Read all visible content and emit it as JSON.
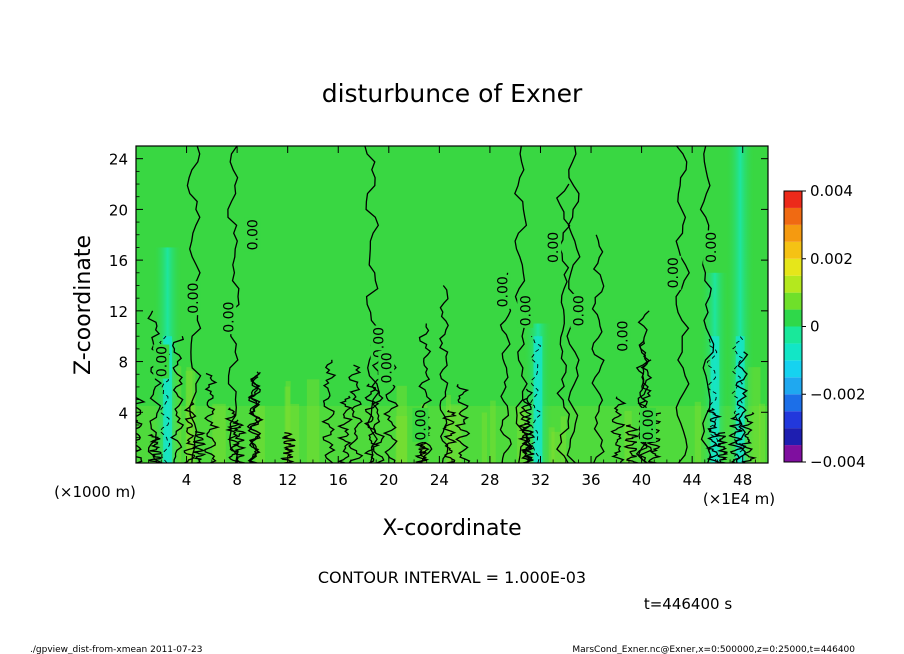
{
  "chart_data": {
    "type": "heatmap",
    "title": "disturbunce of Exner",
    "xlabel": "X-coordinate",
    "ylabel": "Z-coordinate",
    "x_unit_left": "(×1000 m)",
    "x_unit_right": "(×1E4 m)",
    "xlim": [
      0,
      50
    ],
    "ylim": [
      0,
      25
    ],
    "x_ticks": [
      "4",
      "8",
      "12",
      "16",
      "20",
      "24",
      "28",
      "32",
      "36",
      "40",
      "44",
      "48"
    ],
    "y_ticks": [
      "4",
      "8",
      "12",
      "16",
      "20",
      "24"
    ],
    "colorbar": {
      "ticks": [
        "0.004",
        "0.002",
        "0",
        "−0.002",
        "−0.004"
      ],
      "range": [
        -0.004,
        0.004
      ],
      "levels": [
        {
          "value": -0.004,
          "color": "#7f0f9f"
        },
        {
          "value": -0.0035,
          "color": "#1e1eb0"
        },
        {
          "value": -0.003,
          "color": "#2238dc"
        },
        {
          "value": -0.0025,
          "color": "#1c6fe8"
        },
        {
          "value": -0.002,
          "color": "#1fa8f0"
        },
        {
          "value": -0.0015,
          "color": "#16d2f0"
        },
        {
          "value": -0.001,
          "color": "#12e6c6"
        },
        {
          "value": -0.0005,
          "color": "#19e89a"
        },
        {
          "value": 0.0,
          "color": "#2fd84a"
        },
        {
          "value": 0.0005,
          "color": "#6fe02a"
        },
        {
          "value": 0.001,
          "color": "#b4e81e"
        },
        {
          "value": 0.0015,
          "color": "#e6e61a"
        },
        {
          "value": 0.002,
          "color": "#f5c214"
        },
        {
          "value": 0.0025,
          "color": "#f59a10"
        },
        {
          "value": 0.003,
          "color": "#f06a12"
        },
        {
          "value": 0.0035,
          "color": "#ec2a1a"
        },
        {
          "value": 0.004,
          "color": "#f08a8a"
        }
      ],
      "top_color": "#f5b8b8"
    },
    "contour_interval_text": "CONTOUR INTERVAL = 1.000E-03",
    "time_text": "t=446400 s",
    "contour_label": "0.00",
    "contour_labels": [
      {
        "x": 2.0,
        "z": 8.0
      },
      {
        "x": 4.5,
        "z": 13.0
      },
      {
        "x": 7.3,
        "z": 11.5
      },
      {
        "x": 9.2,
        "z": 18.0
      },
      {
        "x": 19.2,
        "z": 9.5
      },
      {
        "x": 19.8,
        "z": 7.5
      },
      {
        "x": 22.5,
        "z": 3.0
      },
      {
        "x": 29.0,
        "z": 13.5
      },
      {
        "x": 30.8,
        "z": 12.0
      },
      {
        "x": 33.0,
        "z": 17.0
      },
      {
        "x": 35.0,
        "z": 12.0
      },
      {
        "x": 38.5,
        "z": 10.0
      },
      {
        "x": 40.5,
        "z": 3.0
      },
      {
        "x": 42.5,
        "z": 15.0
      },
      {
        "x": 45.5,
        "z": 17.0
      }
    ],
    "negative_centers": [
      {
        "x": 2.5,
        "zmax": 17
      },
      {
        "x": 31.8,
        "zmax": 11
      },
      {
        "x": 45.8,
        "zmax": 15
      },
      {
        "x": 47.8,
        "zmax": 25
      }
    ]
  },
  "footer": {
    "left": "./gpview_dist-from-xmean  2011-07-23",
    "right": "MarsCond_Exner.nc@Exner,x=0:500000,z=0:25000,t=446400"
  }
}
